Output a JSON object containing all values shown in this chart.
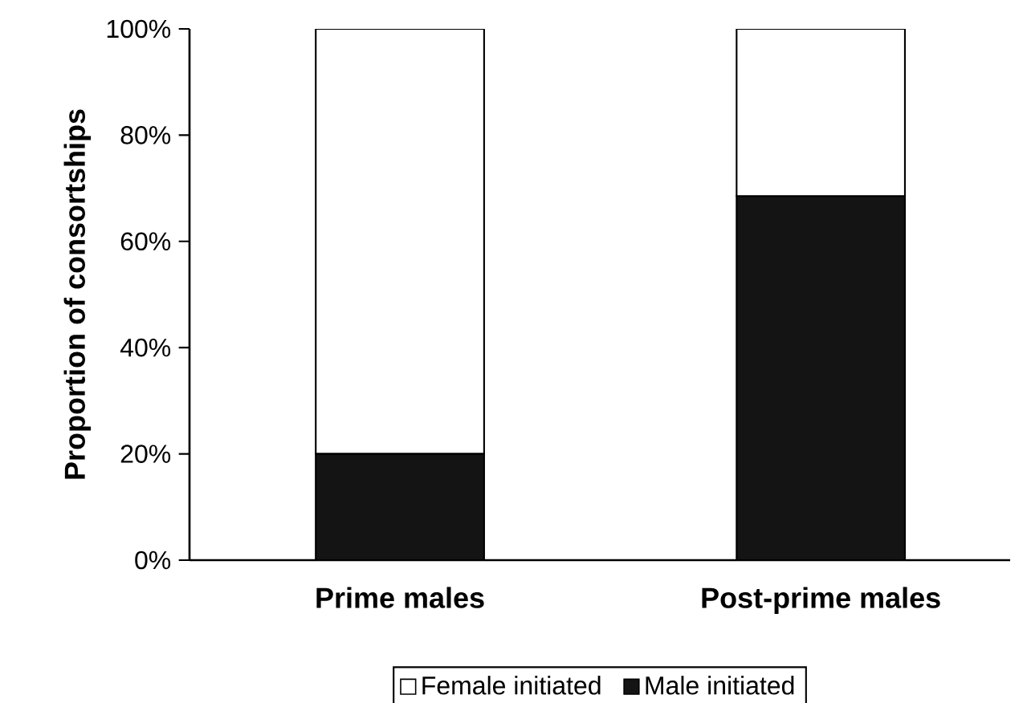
{
  "chart_data": {
    "type": "bar",
    "stacked": true,
    "ylabel": "Proportion of consortships",
    "categories": [
      "Prime males",
      "Post-prime males"
    ],
    "series": [
      {
        "name": "Male initiated",
        "color": "#141414",
        "values": [
          20,
          68.5
        ]
      },
      {
        "name": "Female initiated",
        "color": "#ffffff",
        "values": [
          80,
          31.5
        ]
      }
    ],
    "ylim": [
      0,
      100
    ],
    "yticks": [
      {
        "value": 0,
        "label": "0%"
      },
      {
        "value": 20,
        "label": "20%"
      },
      {
        "value": 40,
        "label": "40%"
      },
      {
        "value": 60,
        "label": "60%"
      },
      {
        "value": 80,
        "label": "80%"
      },
      {
        "value": 100,
        "label": "100%"
      }
    ],
    "grid": false,
    "legend": "bottom"
  }
}
